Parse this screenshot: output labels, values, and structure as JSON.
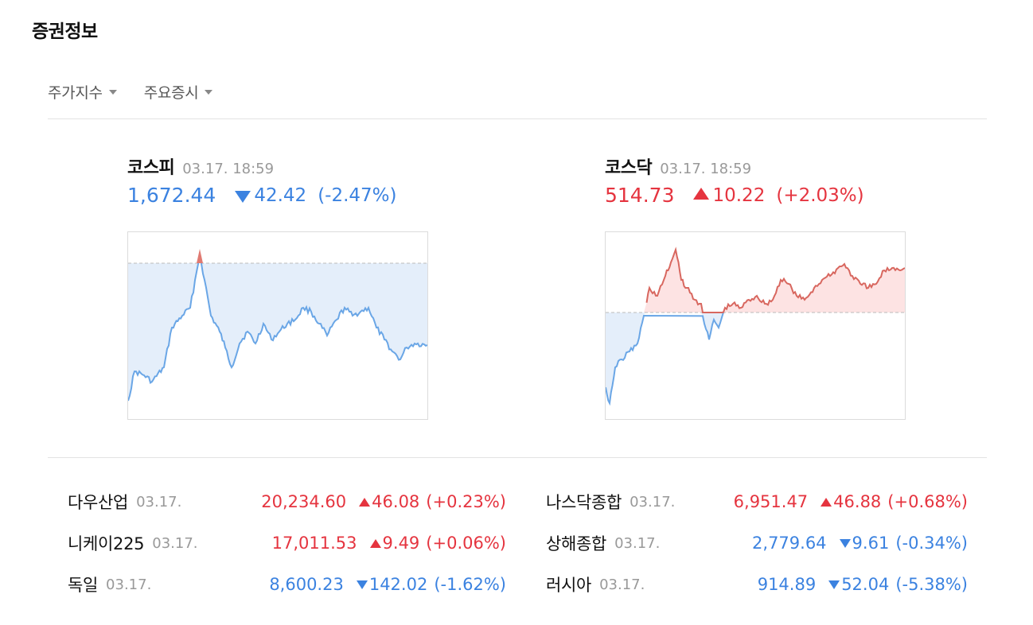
{
  "section_title": "증권정보",
  "tabs": [
    {
      "label": "주가지수"
    },
    {
      "label": "주요증시"
    }
  ],
  "main_indices": [
    {
      "name": "코스피",
      "date": "03.17. 18:59",
      "price": "1,672.44",
      "change": "42.42",
      "percent": "(-2.47%)",
      "direction": "down",
      "color": "#3b82e0"
    },
    {
      "name": "코스닥",
      "date": "03.17. 18:59",
      "price": "514.73",
      "change": "10.22",
      "percent": "(+2.03%)",
      "direction": "up",
      "color": "#e5343f"
    }
  ],
  "world_indices": [
    {
      "name": "다우산업",
      "date": "03.17.",
      "value": "20,234.60",
      "change": "46.08",
      "percent": "(+0.23%)",
      "direction": "up"
    },
    {
      "name": "나스닥종합",
      "date": "03.17.",
      "value": "6,951.47",
      "change": "46.88",
      "percent": "(+0.68%)",
      "direction": "up"
    },
    {
      "name": "니케이225",
      "date": "03.17.",
      "value": "17,011.53",
      "change": "9.49",
      "percent": "(+0.06%)",
      "direction": "up"
    },
    {
      "name": "상해종합",
      "date": "03.17.",
      "value": "2,779.64",
      "change": "9.61",
      "percent": "(-0.34%)",
      "direction": "down"
    },
    {
      "name": "독일",
      "date": "03.17.",
      "value": "8,600.23",
      "change": "142.02",
      "percent": "(-1.62%)",
      "direction": "down"
    },
    {
      "name": "러시아",
      "date": "03.17.",
      "value": "914.89",
      "change": "52.04",
      "percent": "(-5.38%)",
      "direction": "down"
    }
  ],
  "colors": {
    "up": "#e5343f",
    "down": "#3b82e0",
    "up_fill": "#fde3e3",
    "down_fill": "#e4eefa"
  }
}
